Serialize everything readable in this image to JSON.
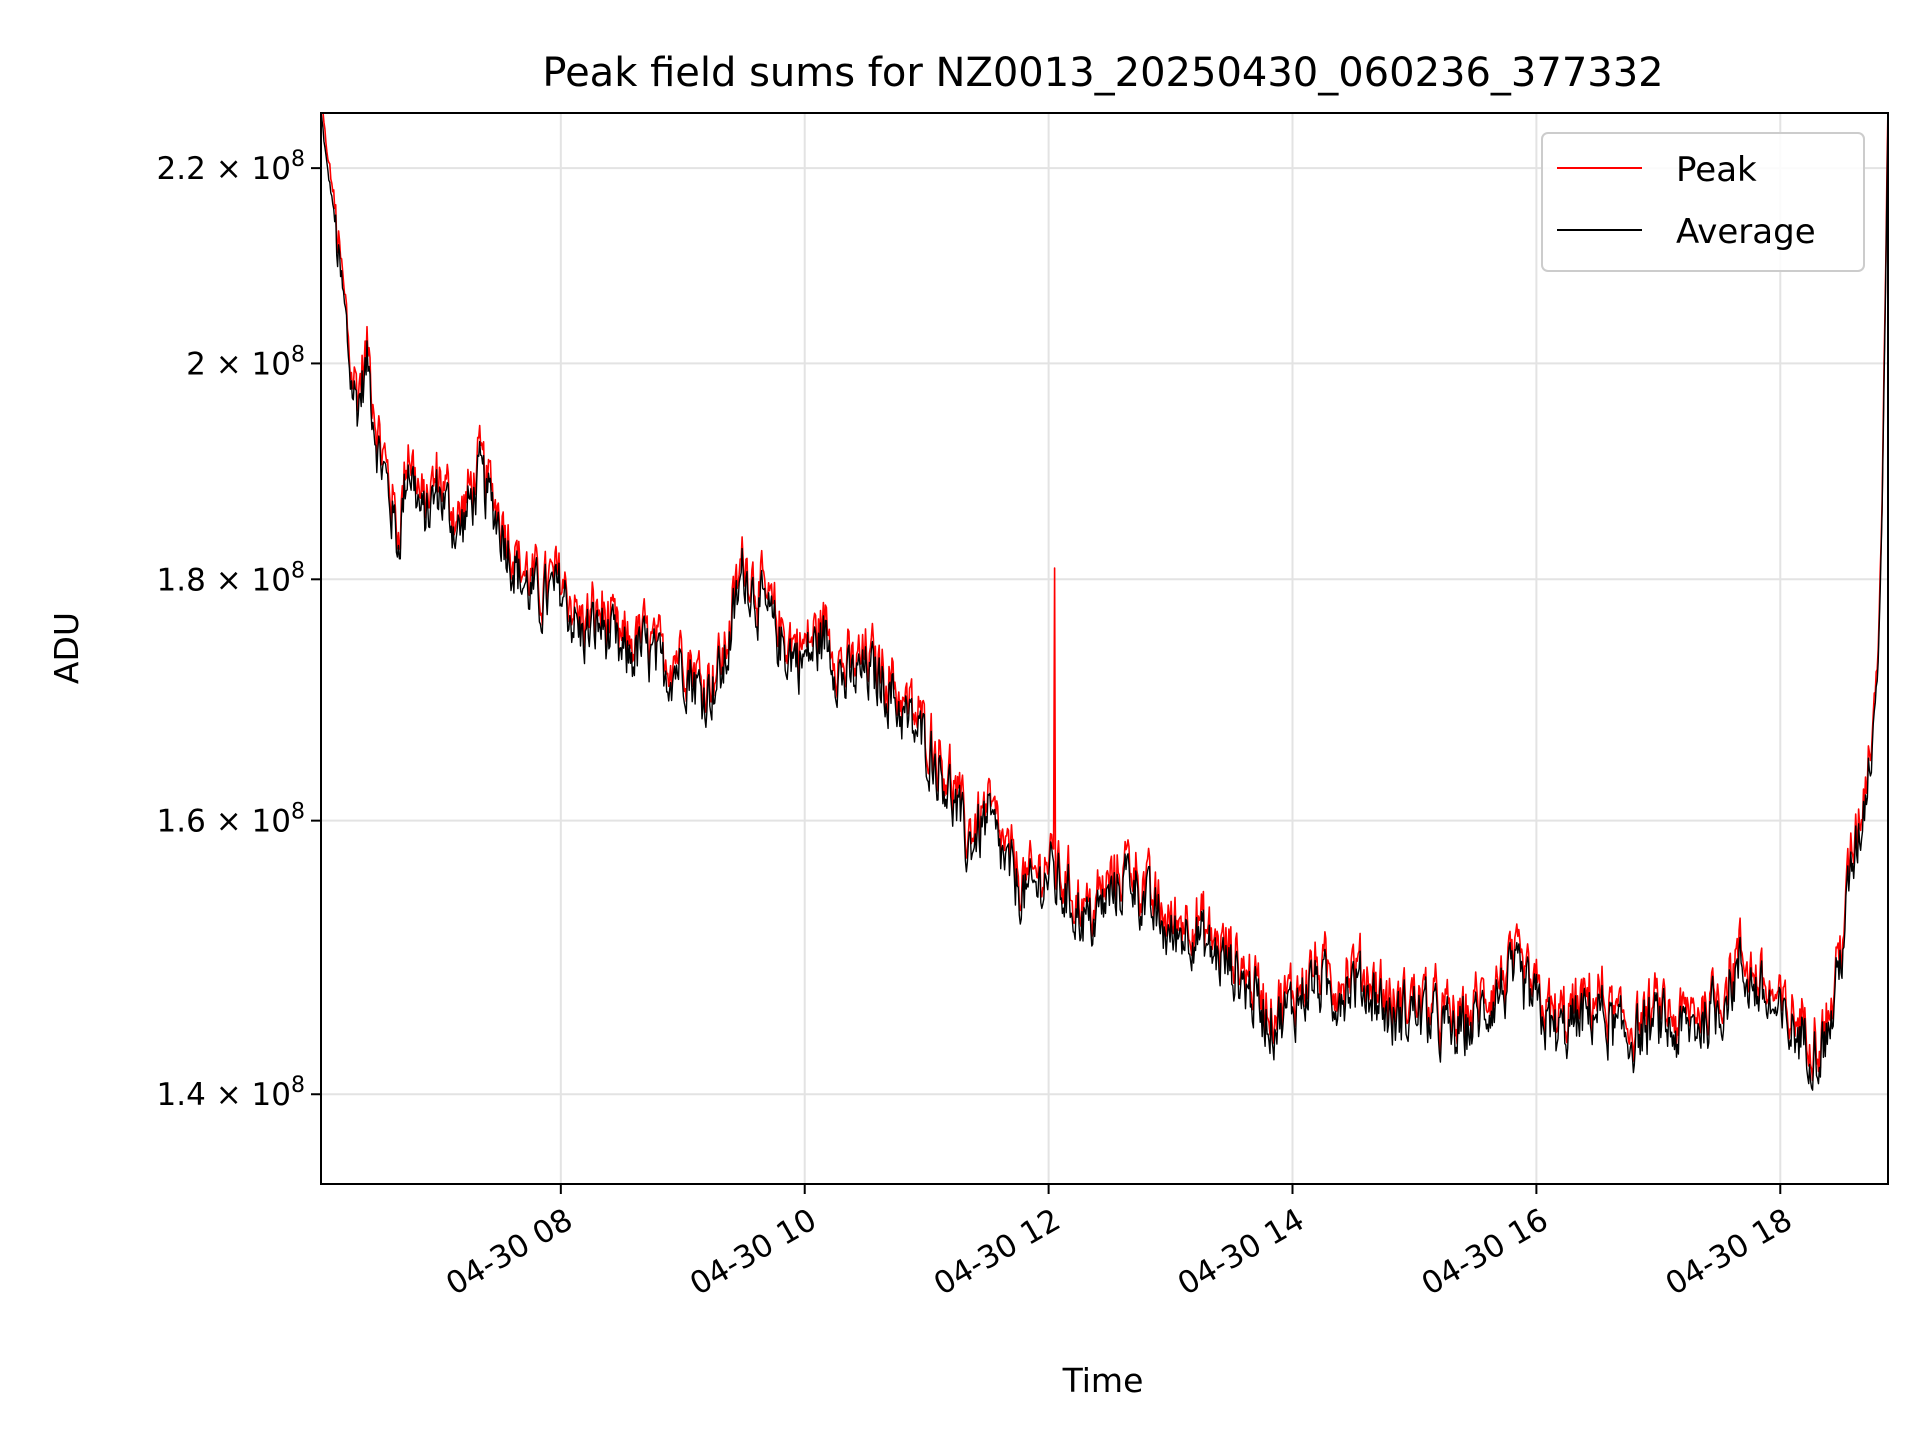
{
  "chart_data": {
    "type": "line",
    "title": "Peak field sums for NZ0013_20250430_060236_377332",
    "xlabel": "Time",
    "ylabel": "ADU",
    "y_scale": "log",
    "grid": true,
    "legend_position": "top-right",
    "xlim": [
      "2025-04-30T06:02",
      "2025-04-30T18:53"
    ],
    "ylim": [
      134000000,
      226000000
    ],
    "x_ticks": [
      {
        "value": "2025-04-30T08:00",
        "label": "04-30 08"
      },
      {
        "value": "2025-04-30T10:00",
        "label": "04-30 10"
      },
      {
        "value": "2025-04-30T12:00",
        "label": "04-30 12"
      },
      {
        "value": "2025-04-30T14:00",
        "label": "04-30 14"
      },
      {
        "value": "2025-04-30T16:00",
        "label": "04-30 16"
      },
      {
        "value": "2025-04-30T18:00",
        "label": "04-30 18"
      }
    ],
    "y_ticks": [
      {
        "value": 140000000,
        "mantissa": "1.4",
        "exponent": "8"
      },
      {
        "value": 160000000,
        "mantissa": "1.6",
        "exponent": "8"
      },
      {
        "value": 180000000,
        "mantissa": "1.8",
        "exponent": "8"
      },
      {
        "value": 200000000,
        "mantissa": "2",
        "exponent": "8"
      },
      {
        "value": 220000000,
        "mantissa": "2.2",
        "exponent": "8"
      }
    ],
    "series": [
      {
        "name": "Peak",
        "color": "#ff0000"
      },
      {
        "name": "Average",
        "color": "#000000"
      }
    ],
    "average_points": [
      [
        "2025-04-30T06:02",
        226000000.0
      ],
      [
        "2025-04-30T06:05",
        220000000.0
      ],
      [
        "2025-04-30T06:08",
        216000000.0
      ],
      [
        "2025-04-30T06:11",
        209000000.0
      ],
      [
        "2025-04-30T06:14",
        204000000.0
      ],
      [
        "2025-04-30T06:17",
        198000000.0
      ],
      [
        "2025-04-30T06:20",
        196000000.0
      ],
      [
        "2025-04-30T06:25",
        200000000.0
      ],
      [
        "2025-04-30T06:30",
        192000000.0
      ],
      [
        "2025-04-30T06:35",
        188000000.0
      ],
      [
        "2025-04-30T06:40",
        183000000.0
      ],
      [
        "2025-04-30T06:45",
        191000000.0
      ],
      [
        "2025-04-30T06:52",
        185000000.0
      ],
      [
        "2025-04-30T07:00",
        188000000.0
      ],
      [
        "2025-04-30T07:10",
        184000000.0
      ],
      [
        "2025-04-30T07:20",
        189000000.0
      ],
      [
        "2025-04-30T07:30",
        185000000.0
      ],
      [
        "2025-04-30T07:40",
        180000000.0
      ],
      [
        "2025-04-30T07:50",
        178000000.0
      ],
      [
        "2025-04-30T08:00",
        179000000.0
      ],
      [
        "2025-04-30T08:10",
        175000000.0
      ],
      [
        "2025-04-30T08:20",
        176000000.0
      ],
      [
        "2025-04-30T08:30",
        173000000.0
      ],
      [
        "2025-04-30T08:40",
        174000000.0
      ],
      [
        "2025-04-30T08:50",
        172000000.0
      ],
      [
        "2025-04-30T09:00",
        173000000.0
      ],
      [
        "2025-04-30T09:10",
        170000000.0
      ],
      [
        "2025-04-30T09:20",
        172000000.0
      ],
      [
        "2025-04-30T09:30",
        181000000.0
      ],
      [
        "2025-04-30T09:40",
        177000000.0
      ],
      [
        "2025-04-30T09:50",
        174000000.0
      ],
      [
        "2025-04-30T10:00",
        173000000.0
      ],
      [
        "2025-04-30T10:10",
        175000000.0
      ],
      [
        "2025-04-30T10:20",
        171000000.0
      ],
      [
        "2025-04-30T10:30",
        172000000.0
      ],
      [
        "2025-04-30T10:40",
        171000000.0
      ],
      [
        "2025-04-30T10:50",
        168000000.0
      ],
      [
        "2025-04-30T11:00",
        166000000.0
      ],
      [
        "2025-04-30T11:10",
        163000000.0
      ],
      [
        "2025-04-30T11:20",
        158000000.0
      ],
      [
        "2025-04-30T11:30",
        160000000.0
      ],
      [
        "2025-04-30T11:40",
        156000000.0
      ],
      [
        "2025-04-30T11:50",
        154000000.0
      ],
      [
        "2025-04-30T12:00",
        156000000.0
      ],
      [
        "2025-04-30T12:10",
        154000000.0
      ],
      [
        "2025-04-30T12:20",
        152000000.0
      ],
      [
        "2025-04-30T12:30",
        154000000.0
      ],
      [
        "2025-04-30T12:40",
        156000000.0
      ],
      [
        "2025-04-30T12:50",
        153000000.0
      ],
      [
        "2025-04-30T13:00",
        151000000.0
      ],
      [
        "2025-04-30T13:10",
        152000000.0
      ],
      [
        "2025-04-30T13:20",
        150000000.0
      ],
      [
        "2025-04-30T13:30",
        149000000.0
      ],
      [
        "2025-04-30T13:40",
        147000000.0
      ],
      [
        "2025-04-30T13:50",
        145000000.0
      ],
      [
        "2025-04-30T14:00",
        146000000.0
      ],
      [
        "2025-04-30T14:10",
        148000000.0
      ],
      [
        "2025-04-30T14:20",
        147000000.0
      ],
      [
        "2025-04-30T14:30",
        148000000.0
      ],
      [
        "2025-04-30T14:40",
        147000000.0
      ],
      [
        "2025-04-30T14:50",
        145000000.0
      ],
      [
        "2025-04-30T15:00",
        146000000.0
      ],
      [
        "2025-04-30T15:10",
        145000000.0
      ],
      [
        "2025-04-30T15:20",
        144000000.0
      ],
      [
        "2025-04-30T15:30",
        145000000.0
      ],
      [
        "2025-04-30T15:40",
        147000000.0
      ],
      [
        "2025-04-30T15:50",
        148000000.0
      ],
      [
        "2025-04-30T16:00",
        146000000.0
      ],
      [
        "2025-04-30T16:10",
        144000000.0
      ],
      [
        "2025-04-30T16:20",
        145000000.0
      ],
      [
        "2025-04-30T16:30",
        146000000.0
      ],
      [
        "2025-04-30T16:40",
        144000000.0
      ],
      [
        "2025-04-30T16:50",
        144000000.0
      ],
      [
        "2025-04-30T17:00",
        145000000.0
      ],
      [
        "2025-04-30T17:10",
        144000000.0
      ],
      [
        "2025-04-30T17:20",
        145000000.0
      ],
      [
        "2025-04-30T17:30",
        146000000.0
      ],
      [
        "2025-04-30T17:40",
        149000000.0
      ],
      [
        "2025-04-30T17:50",
        147000000.0
      ],
      [
        "2025-04-30T18:00",
        145000000.0
      ],
      [
        "2025-04-30T18:10",
        144000000.0
      ],
      [
        "2025-04-30T18:20",
        143000000.0
      ],
      [
        "2025-04-30T18:25",
        145000000.0
      ],
      [
        "2025-04-30T18:30",
        150000000.0
      ],
      [
        "2025-04-30T18:35",
        156000000.0
      ],
      [
        "2025-04-30T18:40",
        160000000.0
      ],
      [
        "2025-04-30T18:44",
        165000000.0
      ],
      [
        "2025-04-30T18:48",
        172000000.0
      ],
      [
        "2025-04-30T18:50",
        185000000.0
      ],
      [
        "2025-04-30T18:52",
        210000000.0
      ],
      [
        "2025-04-30T18:53",
        226000000.0
      ]
    ],
    "noise_amplitude": 0.045,
    "peak_spike": {
      "time": "2025-04-30T12:03",
      "value": 181000000
    }
  }
}
